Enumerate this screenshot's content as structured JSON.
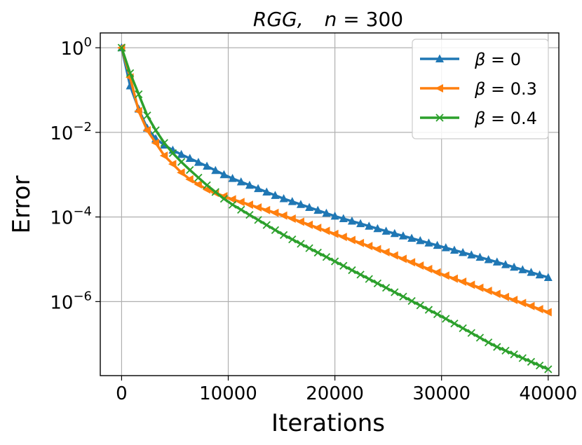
{
  "chart_data": {
    "type": "line",
    "title": "RGG,    n = 300",
    "xlabel": "Iterations",
    "ylabel": "Error",
    "xlim": [
      -2000,
      41000
    ],
    "ylim_log10": [
      -7.75,
      0.35
    ],
    "y_scale": "log",
    "grid": true,
    "legend_position": "top-right",
    "x_ticks": [
      {
        "value": 0,
        "label": "0"
      },
      {
        "value": 10000,
        "label": "10000"
      },
      {
        "value": 20000,
        "label": "20000"
      },
      {
        "value": 30000,
        "label": "30000"
      },
      {
        "value": 40000,
        "label": "40000"
      }
    ],
    "y_ticks": [
      {
        "exp": 0,
        "base": "10",
        "sup": "0"
      },
      {
        "exp": -2,
        "base": "10",
        "sup": "−2"
      },
      {
        "exp": -4,
        "base": "10",
        "sup": "−4"
      },
      {
        "exp": -6,
        "base": "10",
        "sup": "−6"
      }
    ],
    "series": [
      {
        "name": "β = 0",
        "name_parts": {
          "symbol": "β",
          "rest": " = 0"
        },
        "color": "#1f77b4",
        "marker": "triangle-up",
        "x_step": 800,
        "anchors_log10": [
          [
            0,
            0
          ],
          [
            800,
            -0.9
          ],
          [
            1600,
            -1.45
          ],
          [
            2400,
            -1.9
          ],
          [
            3200,
            -2.15
          ],
          [
            4000,
            -2.3
          ],
          [
            5000,
            -2.45
          ],
          [
            6000,
            -2.57
          ],
          [
            8000,
            -2.8
          ],
          [
            10000,
            -3.05
          ],
          [
            15000,
            -3.55
          ],
          [
            20000,
            -3.98
          ],
          [
            25000,
            -4.35
          ],
          [
            30000,
            -4.7
          ],
          [
            35000,
            -5.05
          ],
          [
            40000,
            -5.43
          ]
        ]
      },
      {
        "name": "β = 0.3",
        "name_parts": {
          "symbol": "β",
          "rest": " = 0.3"
        },
        "color": "#ff7f0e",
        "marker": "triangle-left",
        "x_step": 800,
        "anchors_log10": [
          [
            0,
            0
          ],
          [
            800,
            -0.7
          ],
          [
            1600,
            -1.5
          ],
          [
            2400,
            -1.95
          ],
          [
            3200,
            -2.25
          ],
          [
            4000,
            -2.55
          ],
          [
            5000,
            -2.8
          ],
          [
            6000,
            -3.05
          ],
          [
            8000,
            -3.35
          ],
          [
            10000,
            -3.55
          ],
          [
            15000,
            -3.95
          ],
          [
            20000,
            -4.4
          ],
          [
            25000,
            -4.85
          ],
          [
            30000,
            -5.35
          ],
          [
            35000,
            -5.8
          ],
          [
            40000,
            -6.25
          ]
        ]
      },
      {
        "name": "β = 0.4",
        "name_parts": {
          "symbol": "β",
          "rest": " = 0.4"
        },
        "color": "#2ca02c",
        "marker": "x",
        "x_step": 800,
        "anchors_log10": [
          [
            0,
            0
          ],
          [
            800,
            -0.6
          ],
          [
            1600,
            -1.1
          ],
          [
            2400,
            -1.6
          ],
          [
            3200,
            -1.95
          ],
          [
            4000,
            -2.25
          ],
          [
            5000,
            -2.55
          ],
          [
            6000,
            -2.8
          ],
          [
            8000,
            -3.25
          ],
          [
            10000,
            -3.65
          ],
          [
            15000,
            -4.4
          ],
          [
            20000,
            -5.05
          ],
          [
            25000,
            -5.7
          ],
          [
            30000,
            -6.35
          ],
          [
            35000,
            -7.05
          ],
          [
            40000,
            -7.6
          ]
        ]
      }
    ]
  }
}
